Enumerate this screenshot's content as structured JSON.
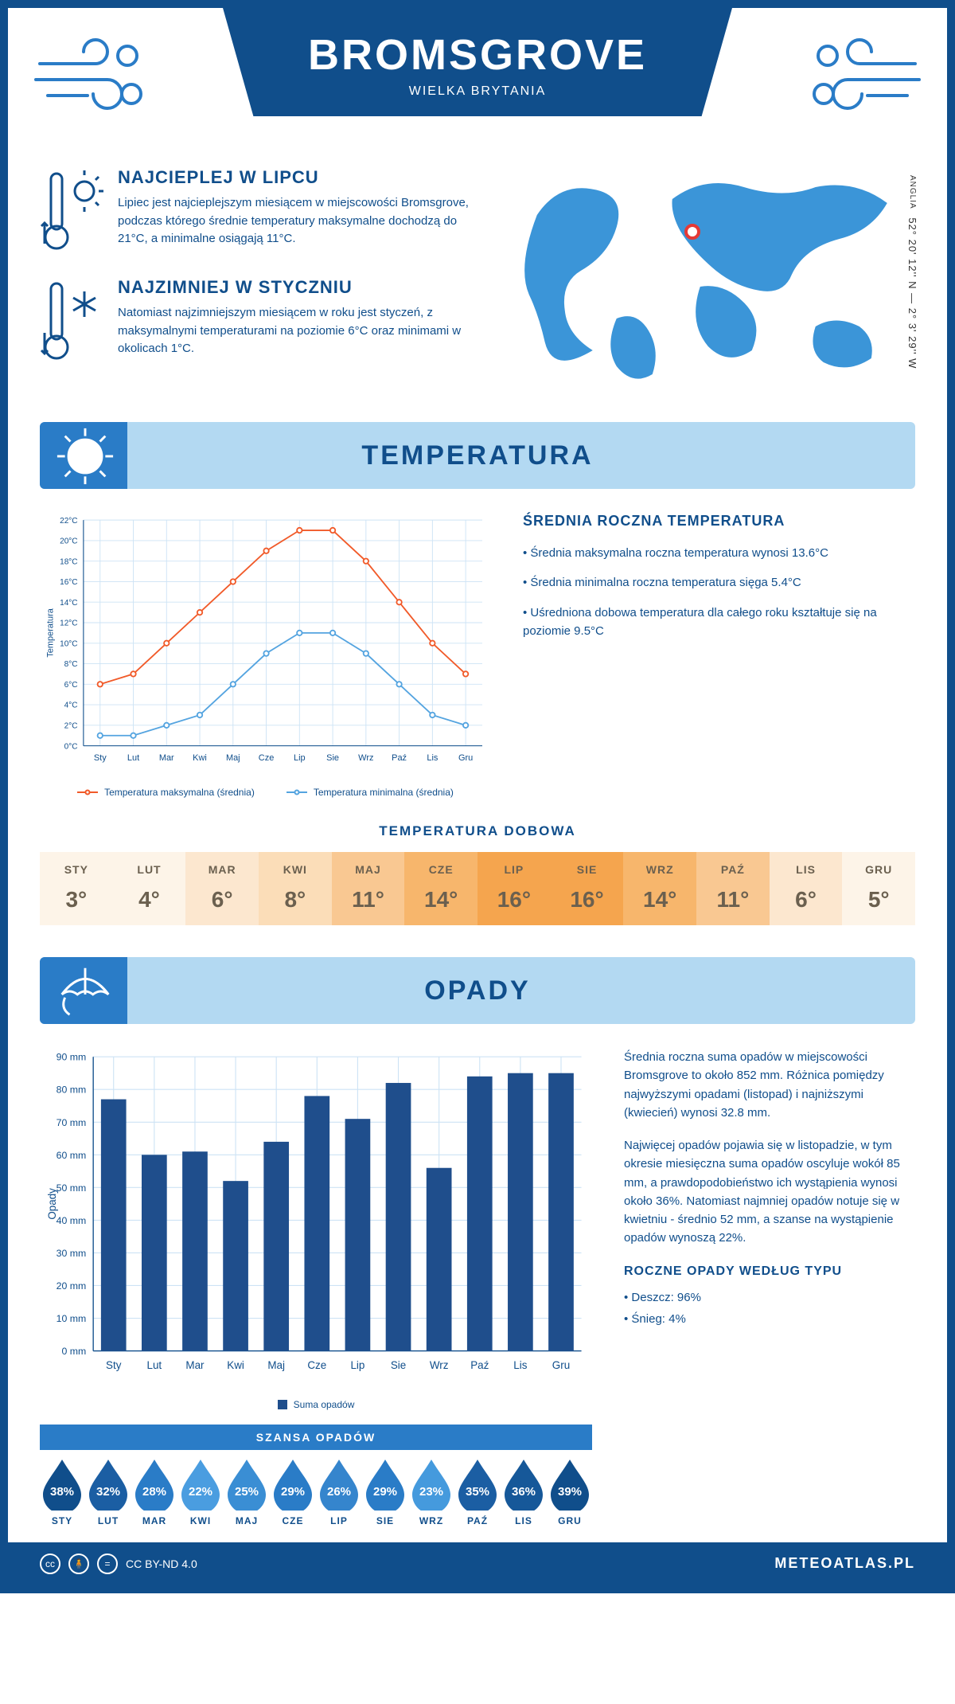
{
  "colors": {
    "brand_dark": "#104e8b",
    "brand_mid": "#2a7cc7",
    "brand_light": "#b3d9f2",
    "grid": "#cde3f5",
    "series_max": "#f15a29",
    "series_min": "#54a4e0",
    "bar": "#1f4e8c",
    "marker_ring": "#e53935",
    "text_table": "#6b604f"
  },
  "header": {
    "title": "BROMSGROVE",
    "subtitle": "WIELKA BRYTANIA"
  },
  "coords": {
    "region": "ANGLIA",
    "line": "52° 20' 12'' N — 2° 3' 29'' W"
  },
  "map_marker": {
    "left_pct": 45,
    "top_pct": 29
  },
  "factoids": {
    "warm": {
      "title": "NAJCIEPLEJ W LIPCU",
      "text": "Lipiec jest najcieplejszym miesiącem w miejscowości Bromsgrove, podczas którego średnie temperatury maksymalne dochodzą do 21°C, a minimalne osiągają 11°C."
    },
    "cold": {
      "title": "NAJZIMNIEJ W STYCZNIU",
      "text": "Natomiast najzimniejszym miesiącem w roku jest styczeń, z maksymalnymi temperaturami na poziomie 6°C oraz minimami w okolicach 1°C."
    }
  },
  "sections": {
    "temperature": "TEMPERATURA",
    "precip": "OPADY"
  },
  "months_short": [
    "Sty",
    "Lut",
    "Mar",
    "Kwi",
    "Maj",
    "Cze",
    "Lip",
    "Sie",
    "Wrz",
    "Paź",
    "Lis",
    "Gru"
  ],
  "months_upper": [
    "STY",
    "LUT",
    "MAR",
    "KWI",
    "MAJ",
    "CZE",
    "LIP",
    "SIE",
    "WRZ",
    "PAŹ",
    "LIS",
    "GRU"
  ],
  "temperature_chart": {
    "type": "line",
    "y_axis_title": "Temperatura",
    "ylim": [
      0,
      22
    ],
    "ytick_step": 2,
    "ytick_suffix": "°C",
    "series": {
      "max": {
        "label": "Temperatura maksymalna (średnia)",
        "color": "#f15a29",
        "values": [
          6,
          7,
          10,
          13,
          16,
          19,
          21,
          21,
          18,
          14,
          10,
          7
        ]
      },
      "min": {
        "label": "Temperatura minimalna (średnia)",
        "color": "#54a4e0",
        "values": [
          1,
          1,
          2,
          3,
          6,
          9,
          11,
          11,
          9,
          6,
          3,
          2
        ]
      }
    },
    "marker_radius": 3.5,
    "line_width": 2,
    "grid_color": "#cde3f5",
    "background": "#ffffff",
    "label_fontsize": 11
  },
  "temperature_side": {
    "heading": "ŚREDNIA ROCZNA TEMPERATURA",
    "bullets": [
      "Średnia maksymalna roczna temperatura wynosi 13.6°C",
      "Średnia minimalna roczna temperatura sięga 5.4°C",
      "Uśredniona dobowa temperatura dla całego roku kształtuje się na poziomie 9.5°C"
    ]
  },
  "daily_temp": {
    "title": "TEMPERATURA DOBOWA",
    "values": [
      3,
      4,
      6,
      8,
      11,
      14,
      16,
      16,
      14,
      11,
      6,
      5
    ],
    "cell_colors": [
      "#fdf4e8",
      "#fdf4e8",
      "#fce7cf",
      "#fbddb8",
      "#f9c892",
      "#f7b66c",
      "#f5a54e",
      "#f5a54e",
      "#f7b66c",
      "#f9c892",
      "#fce7cf",
      "#fdf4e8"
    ],
    "value_suffix": "°"
  },
  "precip_chart": {
    "type": "bar",
    "y_axis_title": "Opady",
    "ylim": [
      0,
      90
    ],
    "ytick_step": 10,
    "ytick_suffix": " mm",
    "values": [
      77,
      60,
      61,
      52,
      64,
      78,
      71,
      82,
      56,
      84,
      85,
      85
    ],
    "bar_color": "#1f4e8c",
    "bar_width": 0.62,
    "grid_color": "#cde3f5",
    "legend_label": "Suma opadów"
  },
  "precip_side": {
    "para1": "Średnia roczna suma opadów w miejscowości Bromsgrove to około 852 mm. Różnica pomiędzy najwyższymi opadami (listopad) i najniższymi (kwiecień) wynosi 32.8 mm.",
    "para2": "Najwięcej opadów pojawia się w listopadzie, w tym okresie miesięczna suma opadów oscyluje wokół 85 mm, a prawdopodobieństwo ich wystąpienia wynosi około 36%. Natomiast najmniej opadów notuje się w kwietniu - średnio 52 mm, a szanse na wystąpienie opadów wynoszą 22%."
  },
  "chance": {
    "title": "SZANSA OPADÓW",
    "values": [
      38,
      32,
      28,
      22,
      25,
      29,
      26,
      29,
      23,
      35,
      36,
      39
    ],
    "drop_colors": [
      "#104e8b",
      "#1b5ea3",
      "#2a7cc7",
      "#4a9de0",
      "#3a8ed4",
      "#2a7cc7",
      "#3585cd",
      "#2a7cc7",
      "#459add",
      "#1b5ea3",
      "#165899",
      "#104e8b"
    ],
    "value_suffix": "%"
  },
  "precip_types": {
    "heading": "ROCZNE OPADY WEDŁUG TYPU",
    "lines": [
      "Deszcz: 96%",
      "Śnieg: 4%"
    ]
  },
  "footer": {
    "license": "CC BY-ND 4.0",
    "brand": "METEOATLAS.PL"
  }
}
